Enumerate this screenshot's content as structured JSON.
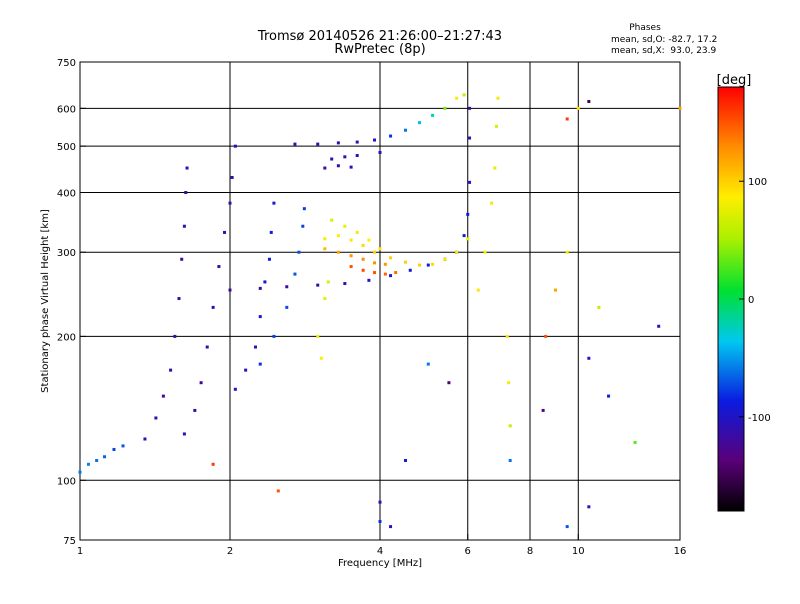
{
  "chart_data": {
    "type": "scatter",
    "title": "Tromsø 20140526 21:26:00–21:27:43",
    "subtitle": "RwPretec (8p)",
    "stats": {
      "heading": "Phases",
      "line_o": "mean, sd,O: -82.7, 17.2",
      "line_x": "mean, sd,X:  93.0, 23.9"
    },
    "xlabel": "Frequency [MHz]",
    "ylabel": "Stationary phase Virtual Height [km]",
    "x_scale": "log",
    "y_scale": "log",
    "xlim": [
      1,
      16
    ],
    "ylim": [
      75,
      750
    ],
    "x_ticks": [
      1,
      2,
      4,
      6,
      8,
      10,
      16
    ],
    "x_tick_labels": [
      "1",
      "2",
      "4",
      "6",
      "8",
      "10",
      "16"
    ],
    "y_ticks": [
      75,
      100,
      200,
      300,
      400,
      500,
      600,
      750
    ],
    "y_tick_labels": [
      "75",
      "100",
      "200",
      "300",
      "400",
      "500",
      "600",
      "750"
    ],
    "x_gridlines": [
      2,
      4,
      6,
      8,
      10
    ],
    "y_gridlines": [
      100,
      200,
      300,
      400,
      500,
      600
    ],
    "grid": true,
    "colorbar": {
      "label": "[deg]",
      "range": [
        -180,
        180
      ],
      "ticks": [
        100,
        0,
        -100
      ],
      "tick_labels": [
        "100",
        "0",
        "-100"
      ],
      "placement": "right"
    },
    "traces": [
      {
        "points": [
          [
            1.0,
            104,
            -60
          ],
          [
            1.04,
            108,
            -55
          ],
          [
            1.08,
            110,
            -60
          ],
          [
            1.12,
            112,
            -65
          ],
          [
            1.17,
            116,
            -75
          ],
          [
            1.22,
            118,
            -70
          ]
        ]
      },
      {
        "points": [
          [
            1.35,
            122,
            -110
          ],
          [
            1.42,
            135,
            -115
          ],
          [
            1.47,
            150,
            -120
          ],
          [
            1.52,
            170,
            -115
          ],
          [
            1.55,
            200,
            -110
          ],
          [
            1.58,
            240,
            -112
          ],
          [
            1.6,
            290,
            -118
          ],
          [
            1.62,
            340,
            -115
          ],
          [
            1.63,
            400,
            -110
          ],
          [
            1.64,
            450,
            -108
          ]
        ]
      },
      {
        "points": [
          [
            1.62,
            125,
            -110
          ],
          [
            1.7,
            140,
            -115
          ],
          [
            1.75,
            160,
            -120
          ],
          [
            1.8,
            190,
            -112
          ],
          [
            1.85,
            230,
            -110
          ],
          [
            1.9,
            280,
            -105
          ],
          [
            1.95,
            330,
            -108
          ],
          [
            2.0,
            380,
            -110
          ],
          [
            2.02,
            430,
            -112
          ],
          [
            2.05,
            500,
            -110
          ]
        ]
      },
      {
        "points": [
          [
            2.05,
            155,
            -105
          ],
          [
            2.15,
            170,
            -100
          ],
          [
            2.25,
            190,
            -100
          ],
          [
            2.3,
            220,
            -98
          ],
          [
            2.35,
            260,
            -95
          ],
          [
            2.4,
            290,
            -90
          ],
          [
            2.42,
            330,
            -92
          ],
          [
            2.45,
            380,
            -95
          ]
        ]
      },
      {
        "points": [
          [
            2.3,
            175,
            -80
          ],
          [
            2.45,
            200,
            -75
          ],
          [
            2.6,
            230,
            -72
          ],
          [
            2.7,
            270,
            -70
          ],
          [
            2.75,
            300,
            -72
          ],
          [
            2.8,
            340,
            -75
          ],
          [
            2.82,
            370,
            -78
          ]
        ]
      },
      {
        "points": [
          [
            2.0,
            250,
            -120
          ],
          [
            2.3,
            252,
            -120
          ],
          [
            2.6,
            254,
            -118
          ],
          [
            3.0,
            256,
            -115
          ],
          [
            3.4,
            258,
            -110
          ],
          [
            3.8,
            262,
            -105
          ],
          [
            4.2,
            268,
            -100
          ],
          [
            4.6,
            275,
            -95
          ],
          [
            5.0,
            282,
            -90
          ],
          [
            5.4,
            290,
            -85
          ],
          [
            5.7,
            300,
            -80
          ],
          [
            5.9,
            325,
            -85
          ],
          [
            6.0,
            360,
            -90
          ],
          [
            6.05,
            420,
            -100
          ],
          [
            6.05,
            520,
            -110
          ],
          [
            6.05,
            600,
            -120
          ]
        ]
      },
      {
        "points": [
          [
            3.1,
            305,
            110
          ],
          [
            3.3,
            300,
            120
          ],
          [
            3.5,
            295,
            125
          ],
          [
            3.7,
            290,
            130
          ],
          [
            3.9,
            285,
            128
          ],
          [
            4.1,
            283,
            125
          ]
        ]
      },
      {
        "points": [
          [
            3.1,
            320,
            80
          ],
          [
            3.3,
            325,
            85
          ],
          [
            3.5,
            318,
            90
          ],
          [
            3.7,
            310,
            95
          ],
          [
            3.9,
            300,
            100
          ],
          [
            4.2,
            292,
            100
          ],
          [
            4.5,
            286,
            100
          ],
          [
            4.8,
            282,
            100
          ],
          [
            5.1,
            283,
            95
          ],
          [
            5.4,
            290,
            90
          ],
          [
            5.7,
            300,
            85
          ],
          [
            6.0,
            320,
            75
          ]
        ]
      },
      {
        "points": [
          [
            3.2,
            350,
            70
          ],
          [
            3.4,
            340,
            75
          ],
          [
            3.6,
            330,
            80
          ],
          [
            3.8,
            318,
            85
          ],
          [
            4.0,
            305,
            90
          ]
        ]
      },
      {
        "points": [
          [
            3.5,
            280,
            150
          ],
          [
            3.7,
            275,
            155
          ],
          [
            3.9,
            272,
            150
          ],
          [
            4.1,
            270,
            145
          ],
          [
            4.3,
            272,
            140
          ]
        ]
      },
      {
        "points": [
          [
            3.0,
            200,
            80
          ],
          [
            3.05,
            180,
            85
          ],
          [
            3.1,
            240,
            75
          ],
          [
            3.15,
            260,
            70
          ]
        ]
      },
      {
        "points": [
          [
            6.3,
            250,
            90
          ],
          [
            6.5,
            300,
            85
          ],
          [
            6.7,
            380,
            80
          ],
          [
            6.8,
            450,
            75
          ],
          [
            6.85,
            550,
            70
          ],
          [
            6.9,
            630,
            80
          ]
        ]
      },
      {
        "points": [
          [
            2.7,
            505,
            -110
          ],
          [
            3.0,
            505,
            -115
          ],
          [
            3.3,
            508,
            -112
          ],
          [
            3.6,
            510,
            -110
          ],
          [
            3.9,
            515,
            -100
          ],
          [
            4.2,
            525,
            -80
          ],
          [
            4.5,
            540,
            -60
          ],
          [
            4.8,
            560,
            -40
          ],
          [
            5.1,
            580,
            -20
          ],
          [
            5.4,
            600,
            40
          ],
          [
            5.7,
            630,
            90
          ],
          [
            5.9,
            640,
            60
          ]
        ]
      },
      {
        "points": [
          [
            3.2,
            470,
            -110
          ],
          [
            3.4,
            475,
            -112
          ],
          [
            3.6,
            478,
            -110
          ],
          [
            4.0,
            485,
            -100
          ]
        ]
      },
      {
        "points": [
          [
            3.1,
            450,
            -120
          ],
          [
            3.3,
            455,
            -115
          ],
          [
            3.5,
            452,
            -110
          ]
        ]
      },
      {
        "points": [
          [
            7.2,
            200,
            90
          ],
          [
            7.25,
            160,
            80
          ],
          [
            7.3,
            130,
            60
          ],
          [
            7.3,
            110,
            -60
          ],
          [
            8.5,
            140,
            -130
          ],
          [
            8.6,
            200,
            150
          ],
          [
            9.0,
            250,
            120
          ],
          [
            9.5,
            300,
            90
          ],
          [
            10.5,
            180,
            -100
          ],
          [
            11.0,
            230,
            60
          ],
          [
            11.5,
            150,
            -90
          ],
          [
            13.0,
            120,
            30
          ],
          [
            14.5,
            210,
            -110
          ],
          [
            16.0,
            600,
            120
          ],
          [
            10.0,
            600,
            90
          ],
          [
            10.5,
            620,
            -150
          ],
          [
            9.5,
            570,
            160
          ]
        ]
      },
      {
        "points": [
          [
            4.0,
            90,
            -110
          ],
          [
            4.0,
            82,
            -80
          ],
          [
            4.2,
            80,
            -100
          ],
          [
            4.5,
            110,
            -90
          ],
          [
            5.0,
            175,
            -60
          ],
          [
            5.5,
            160,
            -140
          ],
          [
            9.5,
            80,
            -70
          ],
          [
            10.5,
            88,
            -100
          ],
          [
            2.5,
            95,
            150
          ],
          [
            1.85,
            108,
            160
          ]
        ]
      }
    ]
  }
}
